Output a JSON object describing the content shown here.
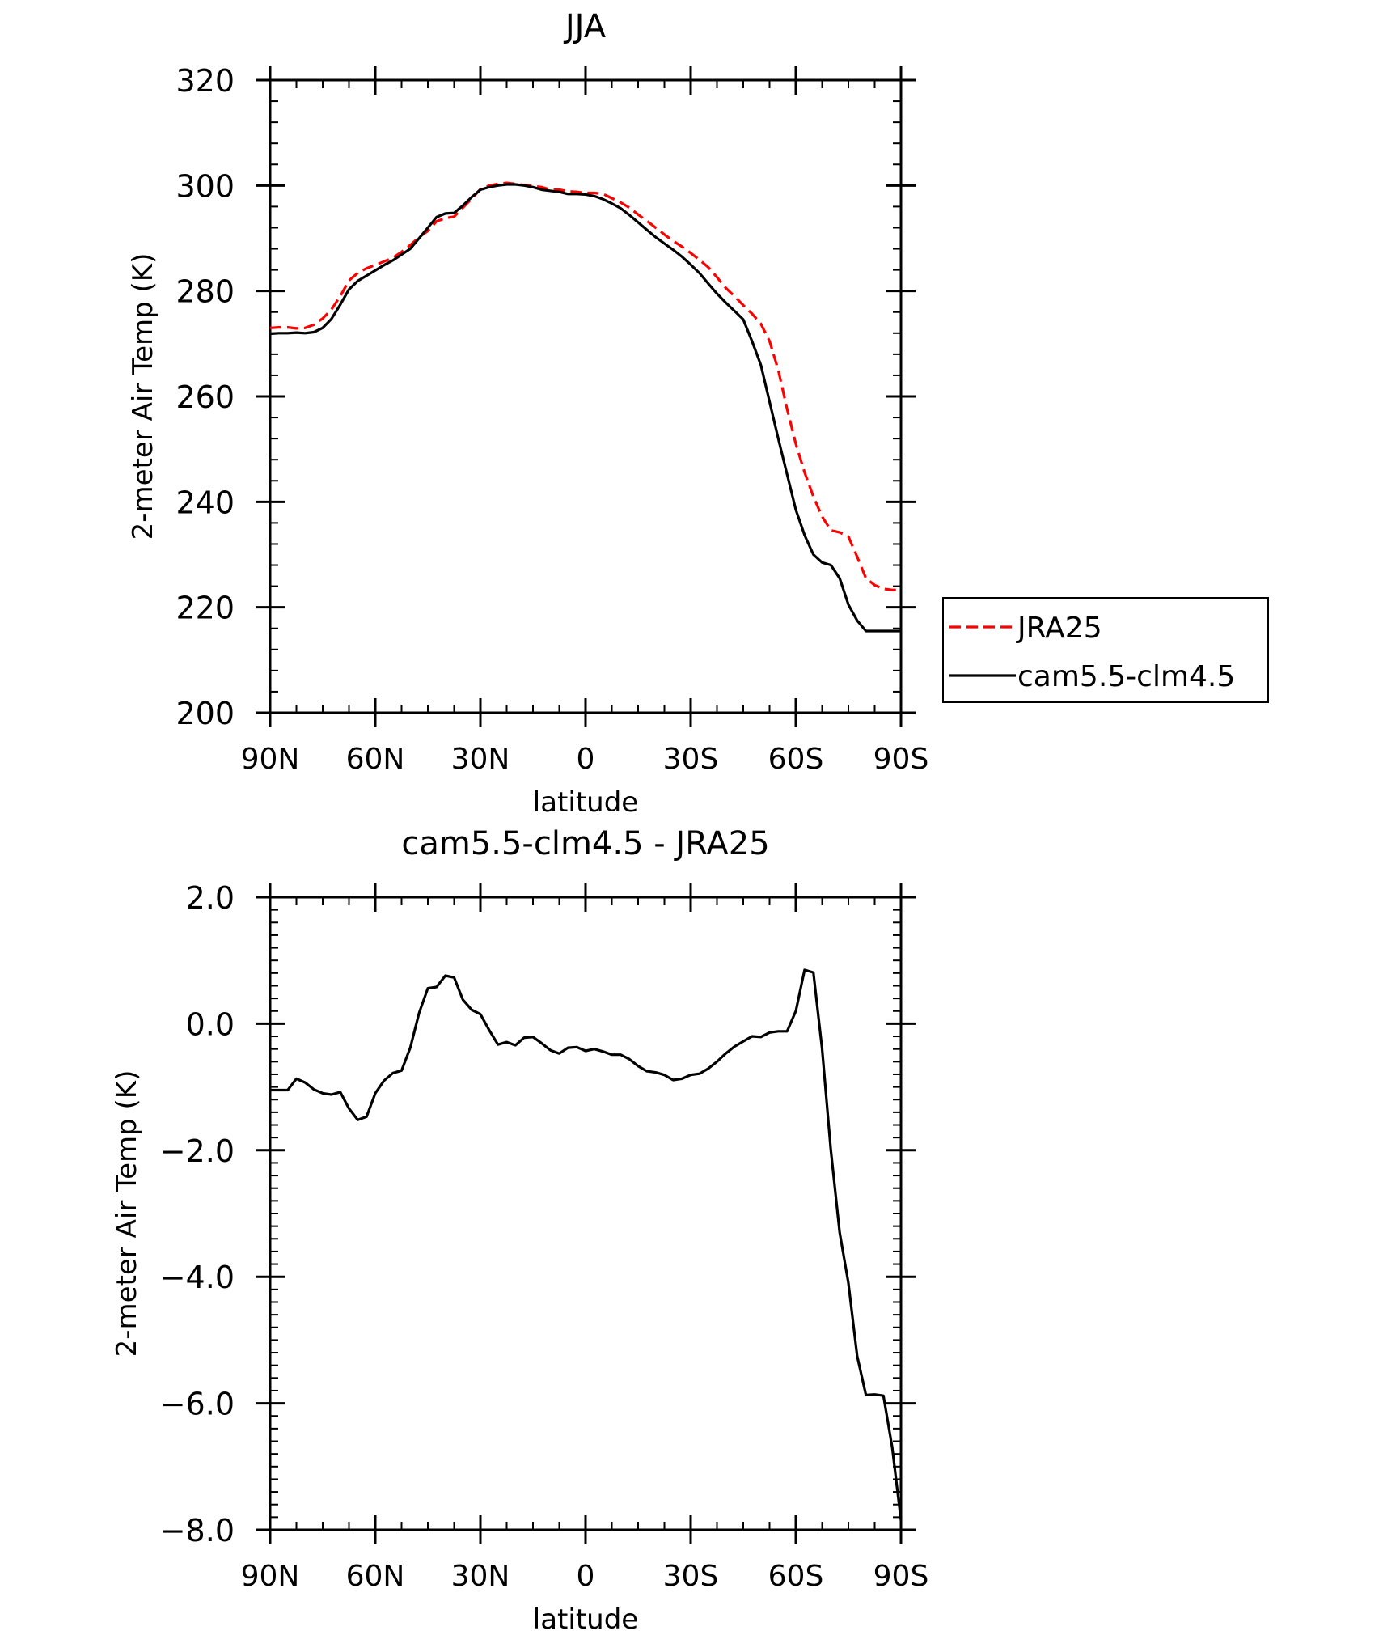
{
  "chart_data": [
    {
      "type": "line",
      "title": "JJA",
      "xlabel": "latitude",
      "ylabel": "2-meter Air Temp (K)",
      "ylim": [
        200,
        320
      ],
      "yticks": [
        200,
        220,
        240,
        260,
        280,
        300,
        320
      ],
      "ytick_labels": [
        "200",
        "220",
        "240",
        "260",
        "280",
        "300",
        "320"
      ],
      "xlim": [
        90,
        -90
      ],
      "xticks": [
        90,
        60,
        30,
        0,
        -30,
        -60,
        -90
      ],
      "xtick_labels": [
        "90N",
        "60N",
        "30N",
        "0",
        "30S",
        "60S",
        "90S"
      ],
      "grid": false,
      "legend": "outside-right",
      "series": [
        {
          "name": "JRA25",
          "color": "#ff0000",
          "style": "dashed",
          "x": [
            90,
            87.5,
            85,
            82.5,
            80,
            77.5,
            75,
            72.5,
            70,
            67.5,
            65,
            62.5,
            60,
            57.5,
            55,
            52.5,
            50,
            47.5,
            45,
            42.5,
            40,
            37.5,
            35,
            32.5,
            30,
            27.5,
            25,
            22.5,
            20,
            17.5,
            15,
            12.5,
            10,
            7.5,
            5,
            2.5,
            0,
            -2.5,
            -5,
            -7.5,
            -10,
            -12.5,
            -15,
            -17.5,
            -20,
            -22.5,
            -25,
            -27.5,
            -30,
            -32.5,
            -35,
            -37.5,
            -40,
            -42.5,
            -45,
            -47.5,
            -50,
            -52.5,
            -55,
            -57.5,
            -60,
            -62.5,
            -65,
            -67.5,
            -70,
            -72.5,
            -75,
            -77.5,
            -80,
            -82.5,
            -85,
            -87.5,
            -90
          ],
          "values": [
            273.0,
            273.1,
            273.1,
            272.9,
            273.0,
            273.6,
            274.8,
            276.5,
            279.0,
            282.0,
            283.4,
            284.3,
            284.9,
            285.6,
            286.3,
            287.4,
            288.7,
            290.2,
            291.4,
            293.2,
            293.8,
            294.1,
            295.8,
            297.5,
            299.3,
            300.0,
            300.3,
            300.5,
            300.3,
            300.1,
            299.9,
            299.7,
            299.2,
            299.2,
            298.9,
            298.8,
            298.6,
            298.6,
            298.4,
            297.6,
            296.8,
            295.8,
            294.5,
            293.3,
            292.0,
            290.7,
            289.5,
            288.4,
            287.2,
            285.9,
            284.5,
            282.6,
            280.6,
            279.0,
            277.3,
            275.7,
            273.8,
            270.5,
            265.0,
            257.6,
            251.0,
            245.6,
            241.0,
            237.2,
            234.6,
            234.2,
            233.4,
            229.6,
            225.5,
            224.2,
            223.5,
            223.3,
            223.3
          ]
        },
        {
          "name": "cam5.5-clm4.5",
          "color": "#000000",
          "style": "solid",
          "x": [
            90,
            87.5,
            85,
            82.5,
            80,
            77.5,
            75,
            72.5,
            70,
            67.5,
            65,
            62.5,
            60,
            57.5,
            55,
            52.5,
            50,
            47.5,
            45,
            42.5,
            40,
            37.5,
            35,
            32.5,
            30,
            27.5,
            25,
            22.5,
            20,
            17.5,
            15,
            12.5,
            10,
            7.5,
            5,
            2.5,
            0,
            -2.5,
            -5,
            -7.5,
            -10,
            -12.5,
            -15,
            -17.5,
            -20,
            -22.5,
            -25,
            -27.5,
            -30,
            -32.5,
            -35,
            -37.5,
            -40,
            -42.5,
            -45,
            -47.5,
            -50,
            -52.5,
            -55,
            -57.5,
            -60,
            -62.5,
            -65,
            -67.5,
            -70,
            -72.5,
            -75,
            -77.5,
            -80,
            -82.5,
            -85,
            -87.5,
            -90
          ],
          "values": [
            271.9,
            272.0,
            272.0,
            272.1,
            272.0,
            272.2,
            273.0,
            274.7,
            277.4,
            280.3,
            281.9,
            282.9,
            283.9,
            284.9,
            285.8,
            286.9,
            288.0,
            290.0,
            292.0,
            294.0,
            294.7,
            294.8,
            296.2,
            297.8,
            299.2,
            299.7,
            300.0,
            300.2,
            300.2,
            300.0,
            299.7,
            299.2,
            299.0,
            298.8,
            298.4,
            298.4,
            298.3,
            298.0,
            297.4,
            296.6,
            295.7,
            294.4,
            293.0,
            291.6,
            290.2,
            289.0,
            287.8,
            286.5,
            285.0,
            283.4,
            281.4,
            279.5,
            277.8,
            276.2,
            274.6,
            270.5,
            266.0,
            259.0,
            252.0,
            245.2,
            238.5,
            233.7,
            230.0,
            228.5,
            228.0,
            225.5,
            220.5,
            217.5,
            215.5,
            215.5,
            215.5,
            215.5,
            215.5
          ]
        }
      ]
    },
    {
      "type": "line",
      "title": "cam5.5-clm4.5 - JRA25",
      "xlabel": "latitude",
      "ylabel": "2-meter Air Temp (K)",
      "ylim": [
        -8.0,
        2.0
      ],
      "yticks": [
        -8,
        -6,
        -4,
        -2,
        0,
        2
      ],
      "ytick_labels": [
        "−8.0",
        "−6.0",
        "−4.0",
        "−2.0",
        "0.0",
        "2.0"
      ],
      "xlim": [
        90,
        -90
      ],
      "xticks": [
        90,
        60,
        30,
        0,
        -30,
        -60,
        -90
      ],
      "xtick_labels": [
        "90N",
        "60N",
        "30N",
        "0",
        "30S",
        "60S",
        "90S"
      ],
      "grid": false,
      "series": [
        {
          "color": "#000000",
          "style": "solid",
          "x": [
            90,
            87.5,
            85,
            82.5,
            80,
            77.5,
            75,
            72.5,
            70,
            67.5,
            65,
            62.5,
            60,
            57.5,
            55,
            52.5,
            50,
            47.5,
            45,
            42.5,
            40,
            37.5,
            35,
            32.5,
            30,
            27.5,
            25,
            22.5,
            20,
            17.5,
            15,
            12.5,
            10,
            7.5,
            5,
            2.5,
            0,
            -2.5,
            -5,
            -7.5,
            -10,
            -12.5,
            -15,
            -17.5,
            -20,
            -22.5,
            -25,
            -27.5,
            -30,
            -32.5,
            -35,
            -37.5,
            -40,
            -42.5,
            -45,
            -47.5,
            -50,
            -52.5,
            -55,
            -57.5,
            -60,
            -62.5,
            -65,
            -67.5,
            -70,
            -72.5,
            -75,
            -77.5,
            -80,
            -82.5,
            -85,
            -87.5,
            -90
          ],
          "values": [
            -1.05,
            -1.05,
            -1.05,
            -0.87,
            -0.93,
            -1.04,
            -1.1,
            -1.12,
            -1.08,
            -1.34,
            -1.52,
            -1.47,
            -1.1,
            -0.9,
            -0.78,
            -0.74,
            -0.38,
            0.17,
            0.56,
            0.58,
            0.76,
            0.73,
            0.38,
            0.22,
            0.15,
            -0.1,
            -0.33,
            -0.29,
            -0.34,
            -0.22,
            -0.21,
            -0.31,
            -0.42,
            -0.47,
            -0.38,
            -0.37,
            -0.43,
            -0.4,
            -0.44,
            -0.49,
            -0.49,
            -0.56,
            -0.67,
            -0.75,
            -0.77,
            -0.81,
            -0.89,
            -0.87,
            -0.81,
            -0.79,
            -0.71,
            -0.6,
            -0.47,
            -0.36,
            -0.28,
            -0.2,
            -0.21,
            -0.14,
            -0.12,
            -0.12,
            0.2,
            0.85,
            0.81,
            -0.4,
            -2.0,
            -3.3,
            -4.1,
            -5.25,
            -5.87,
            -5.86,
            -5.88,
            -6.7,
            -7.85
          ]
        }
      ]
    }
  ]
}
